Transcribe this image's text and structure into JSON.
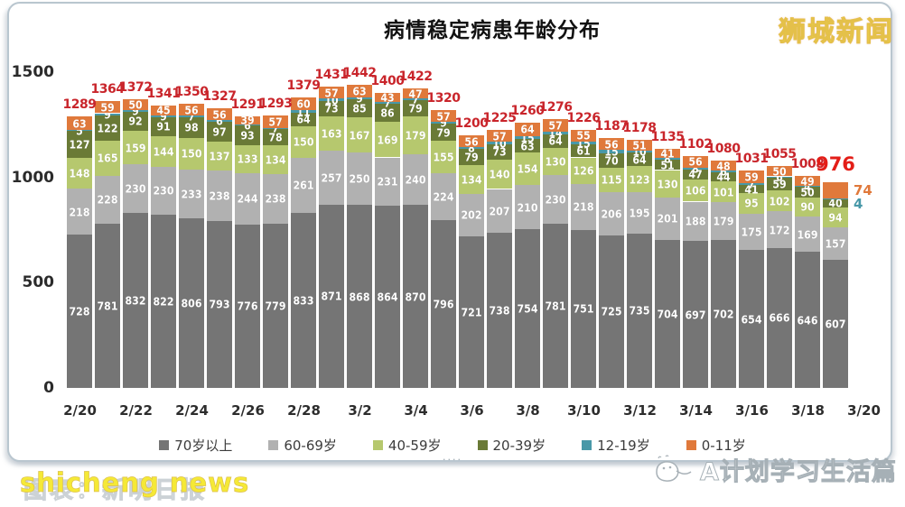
{
  "header": {
    "title": "病情稳定病患年龄分布",
    "logo": "狮城新闻"
  },
  "watermarks": {
    "bottom_left_yellow": "shicheng news",
    "bottom_left_faint": "图表：新明日报",
    "bottom_right_text": "A计划学习生活篇",
    "frame_dots": "····"
  },
  "chart_data": {
    "type": "bar",
    "stacked": true,
    "title": "病情稳定病患年龄分布",
    "xlabel": "",
    "ylabel": "",
    "ylim": [
      0,
      1500
    ],
    "y_ticks": [
      0,
      500,
      1000,
      1500
    ],
    "grid": false,
    "legend_position": "bottom",
    "x_tick_labels": [
      "2/20",
      "2/22",
      "2/24",
      "2/26",
      "2/28",
      "3/2",
      "3/4",
      "3/6",
      "3/8",
      "3/10",
      "3/12",
      "3/14",
      "3/16",
      "3/18",
      "3/20"
    ],
    "totals": [
      1289,
      1364,
      1372,
      1341,
      1350,
      1327,
      1291,
      1293,
      1379,
      1431,
      1442,
      1400,
      1422,
      1320,
      1200,
      1225,
      1260,
      1276,
      1226,
      1187,
      1178,
      1135,
      1102,
      1080,
      1031,
      1055,
      1008,
      976
    ],
    "series": [
      {
        "name": "70岁以上",
        "color": "#757575",
        "values": [
          728,
          781,
          832,
          822,
          806,
          793,
          776,
          779,
          833,
          871,
          868,
          864,
          870,
          796,
          721,
          738,
          754,
          781,
          751,
          725,
          735,
          704,
          697,
          702,
          654,
          666,
          646,
          607
        ]
      },
      {
        "name": "60-69岁",
        "color": "#b1b1b1",
        "values": [
          218,
          228,
          230,
          230,
          233,
          238,
          244,
          238,
          261,
          257,
          250,
          231,
          240,
          224,
          202,
          207,
          210,
          230,
          218,
          206,
          195,
          201,
          188,
          179,
          175,
          172,
          169,
          157
        ]
      },
      {
        "name": "40-59岁",
        "color": "#b6c86e",
        "values": [
          148,
          165,
          159,
          144,
          150,
          137,
          133,
          134,
          150,
          163,
          167,
          169,
          179,
          155,
          134,
          140,
          154,
          130,
          126,
          115,
          123,
          130,
          106,
          101,
          95,
          102,
          90,
          94
        ]
      },
      {
        "name": "20-39岁",
        "color": "#6a7a36",
        "values": [
          127,
          122,
          92,
          91,
          98,
          97,
          93,
          78,
          64,
          73,
          85,
          86,
          79,
          79,
          79,
          73,
          63,
          64,
          61,
          70,
          64,
          51,
          47,
          44,
          41,
          59,
          50,
          40
        ]
      },
      {
        "name": "12-19岁",
        "color": "#4898a8",
        "values": [
          5,
          9,
          9,
          9,
          7,
          6,
          6,
          7,
          11,
          10,
          9,
          7,
          7,
          9,
          8,
          10,
          15,
          14,
          15,
          15,
          10,
          8,
          8,
          6,
          7,
          6,
          4,
          4
        ]
      },
      {
        "name": "0-11岁",
        "color": "#e0793b",
        "values": [
          63,
          59,
          50,
          45,
          56,
          56,
          39,
          57,
          60,
          57,
          63,
          43,
          47,
          57,
          56,
          57,
          64,
          57,
          55,
          56,
          51,
          41,
          56,
          48,
          59,
          50,
          49,
          74
        ]
      }
    ],
    "total_label_color": "#c9252b",
    "last_total_color": "#e31e18"
  }
}
